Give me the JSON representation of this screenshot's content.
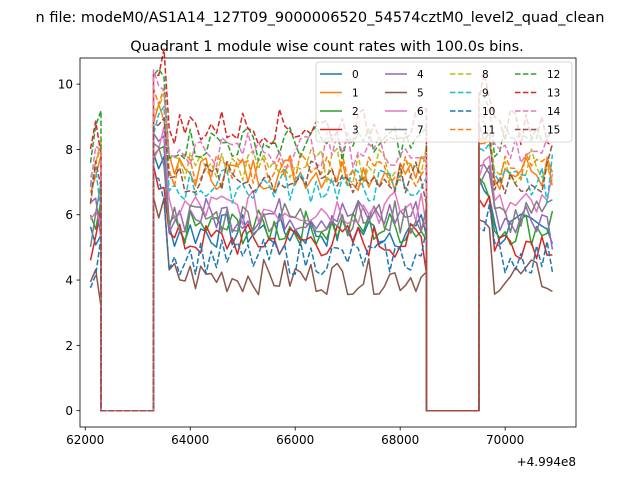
{
  "suptitle": "n file: modeM0/AS1A14_127T09_9000006520_54574cztM0_level2_quad_clean",
  "chart_data": {
    "type": "line",
    "title": "Quadrant 1 module wise count rates with 100.0s bins.",
    "xlabel": "",
    "ylabel": "",
    "x_offset_label": "+4.994e8",
    "xlim": [
      61900,
      71350
    ],
    "ylim": [
      -0.5,
      10.8
    ],
    "xticks": [
      62000,
      64000,
      66000,
      68000,
      70000
    ],
    "xtick_labels": [
      "62000",
      "64000",
      "66000",
      "68000",
      "70000"
    ],
    "yticks": [
      0,
      2,
      4,
      6,
      8,
      10
    ],
    "ytick_labels": [
      "0",
      "2",
      "4",
      "6",
      "8",
      "10"
    ],
    "grid": false,
    "legend_loc": "upper right",
    "legend_ncol": 4,
    "segments": [
      {
        "type": "data",
        "start": 62100,
        "end": 62300
      },
      {
        "type": "gap",
        "start": 62300,
        "end": 63300
      },
      {
        "type": "data",
        "start": 63300,
        "end": 68500
      },
      {
        "type": "gap",
        "start": 68500,
        "end": 69500
      },
      {
        "type": "data",
        "start": 69500,
        "end": 70900
      }
    ],
    "series": [
      {
        "name": "0",
        "color": "#1f77b4",
        "dash": "solid",
        "level": 5.5
      },
      {
        "name": "1",
        "color": "#ff7f0e",
        "dash": "solid",
        "level": 7.3
      },
      {
        "name": "2",
        "color": "#2ca02c",
        "dash": "solid",
        "level": 5.6
      },
      {
        "name": "3",
        "color": "#d62728",
        "dash": "solid",
        "level": 5.2
      },
      {
        "name": "4",
        "color": "#9467bd",
        "dash": "solid",
        "level": 6.0
      },
      {
        "name": "5",
        "color": "#8c564b",
        "dash": "solid",
        "level": 4.1
      },
      {
        "name": "6",
        "color": "#e377c2",
        "dash": "solid",
        "level": 6.2
      },
      {
        "name": "7",
        "color": "#7f7f7f",
        "dash": "solid",
        "level": 5.9
      },
      {
        "name": "8",
        "color": "#bcbd22",
        "dash": "dashed",
        "level": 7.5
      },
      {
        "name": "9",
        "color": "#17becf",
        "dash": "dashed",
        "level": 6.9
      },
      {
        "name": "10",
        "color": "#1f77b4",
        "dash": "dashed",
        "level": 4.7
      },
      {
        "name": "11",
        "color": "#ff7f0e",
        "dash": "dashed",
        "level": 7.4
      },
      {
        "name": "12",
        "color": "#2ca02c",
        "dash": "dashed",
        "level": 8.2
      },
      {
        "name": "13",
        "color": "#d62728",
        "dash": "dashed",
        "level": 8.7
      },
      {
        "name": "14",
        "color": "#e377c2",
        "dash": "dashed",
        "level": 8.0
      },
      {
        "name": "15",
        "color": "#8c564b",
        "dash": "dashed",
        "level": 7.1
      }
    ]
  }
}
